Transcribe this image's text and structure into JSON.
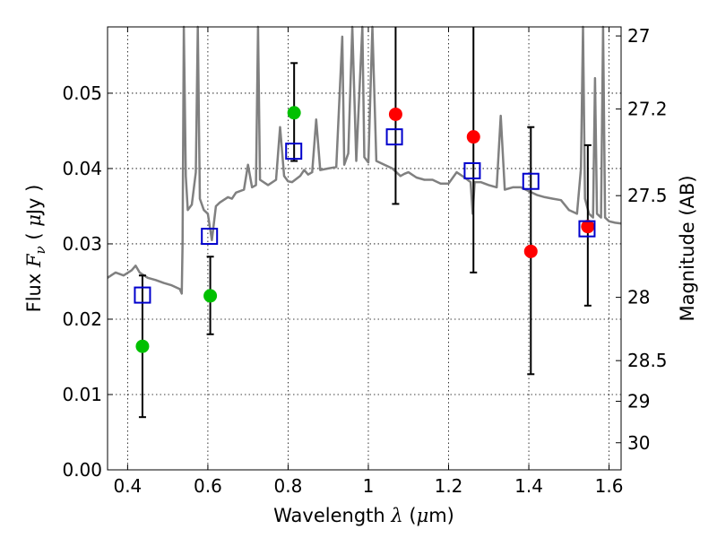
{
  "chart_data": {
    "type": "scatter",
    "xlabel": {
      "prefix": "Wavelength ",
      "symbol": "λ",
      "unit_open": " (",
      "unit_mu": "μ",
      "unit_rest": "m)"
    },
    "ylabel": {
      "prefix": "Flux ",
      "symbol": "F",
      "subscript": "ν",
      "unit_open": " ( ",
      "unit_mu": "μ",
      "unit_rest": "Jy )"
    },
    "y2label": "Magnitude (AB)",
    "xlim": [
      0.35,
      1.63
    ],
    "ylim": [
      0.0,
      0.0588
    ],
    "grid": true,
    "xticks": [
      {
        "value": 0.4,
        "label": "0.4"
      },
      {
        "value": 0.6,
        "label": "0.6"
      },
      {
        "value": 0.8,
        "label": "0.8"
      },
      {
        "value": 1.0,
        "label": "1"
      },
      {
        "value": 1.2,
        "label": "1.2"
      },
      {
        "value": 1.4,
        "label": "1.4"
      },
      {
        "value": 1.6,
        "label": "1.6"
      }
    ],
    "yticks": [
      {
        "value": 0.0,
        "label": "0.00"
      },
      {
        "value": 0.01,
        "label": "0.01"
      },
      {
        "value": 0.02,
        "label": "0.02"
      },
      {
        "value": 0.03,
        "label": "0.03"
      },
      {
        "value": 0.04,
        "label": "0.04"
      },
      {
        "value": 0.05,
        "label": "0.05"
      }
    ],
    "y2ticks": [
      {
        "value": 27,
        "label": "27",
        "flux": 0.0576
      },
      {
        "value": 27.2,
        "label": "27.2",
        "flux": 0.0479
      },
      {
        "value": 27.5,
        "label": "27.5",
        "flux": 0.0364
      },
      {
        "value": 28,
        "label": "28",
        "flux": 0.0229
      },
      {
        "value": 28.5,
        "label": "28.5",
        "flux": 0.0145
      },
      {
        "value": 29,
        "label": "29",
        "flux": 0.0091
      },
      {
        "value": 30,
        "label": "30",
        "flux": 0.0036
      }
    ],
    "series": [
      {
        "name": "model spectrum",
        "style": "line",
        "color": "#808080",
        "points": [
          [
            0.35,
            0.0255
          ],
          [
            0.37,
            0.0262
          ],
          [
            0.39,
            0.0258
          ],
          [
            0.41,
            0.0265
          ],
          [
            0.42,
            0.0271
          ],
          [
            0.43,
            0.0262
          ],
          [
            0.45,
            0.0255
          ],
          [
            0.47,
            0.0252
          ],
          [
            0.49,
            0.0248
          ],
          [
            0.51,
            0.0245
          ],
          [
            0.53,
            0.024
          ],
          [
            0.535,
            0.0234
          ],
          [
            0.537,
            0.03
          ],
          [
            0.54,
            0.0588
          ],
          [
            0.545,
            0.039
          ],
          [
            0.55,
            0.0345
          ],
          [
            0.56,
            0.0352
          ],
          [
            0.57,
            0.0395
          ],
          [
            0.575,
            0.0588
          ],
          [
            0.58,
            0.036
          ],
          [
            0.59,
            0.0345
          ],
          [
            0.6,
            0.034
          ],
          [
            0.61,
            0.0305
          ],
          [
            0.62,
            0.035
          ],
          [
            0.63,
            0.0355
          ],
          [
            0.65,
            0.0362
          ],
          [
            0.66,
            0.036
          ],
          [
            0.67,
            0.0368
          ],
          [
            0.69,
            0.0372
          ],
          [
            0.7,
            0.0405
          ],
          [
            0.71,
            0.0375
          ],
          [
            0.72,
            0.0378
          ],
          [
            0.725,
            0.0588
          ],
          [
            0.73,
            0.0385
          ],
          [
            0.75,
            0.0378
          ],
          [
            0.77,
            0.0385
          ],
          [
            0.78,
            0.0455
          ],
          [
            0.79,
            0.039
          ],
          [
            0.8,
            0.0383
          ],
          [
            0.81,
            0.0382
          ],
          [
            0.83,
            0.039
          ],
          [
            0.84,
            0.0398
          ],
          [
            0.85,
            0.0392
          ],
          [
            0.86,
            0.0395
          ],
          [
            0.87,
            0.0465
          ],
          [
            0.88,
            0.0398
          ],
          [
            0.9,
            0.04
          ],
          [
            0.92,
            0.0402
          ],
          [
            0.935,
            0.0575
          ],
          [
            0.94,
            0.0405
          ],
          [
            0.95,
            0.042
          ],
          [
            0.96,
            0.0588
          ],
          [
            0.97,
            0.041
          ],
          [
            0.985,
            0.0588
          ],
          [
            0.99,
            0.0415
          ],
          [
            1.0,
            0.0408
          ],
          [
            1.01,
            0.0588
          ],
          [
            1.02,
            0.041
          ],
          [
            1.04,
            0.0405
          ],
          [
            1.06,
            0.04
          ],
          [
            1.08,
            0.039
          ],
          [
            1.09,
            0.0393
          ],
          [
            1.1,
            0.0395
          ],
          [
            1.12,
            0.0388
          ],
          [
            1.14,
            0.0385
          ],
          [
            1.16,
            0.0385
          ],
          [
            1.18,
            0.038
          ],
          [
            1.2,
            0.038
          ],
          [
            1.22,
            0.0395
          ],
          [
            1.24,
            0.0388
          ],
          [
            1.255,
            0.0382
          ],
          [
            1.26,
            0.034
          ],
          [
            1.265,
            0.0382
          ],
          [
            1.28,
            0.0382
          ],
          [
            1.3,
            0.0378
          ],
          [
            1.32,
            0.0375
          ],
          [
            1.33,
            0.047
          ],
          [
            1.34,
            0.0372
          ],
          [
            1.36,
            0.0375
          ],
          [
            1.38,
            0.0375
          ],
          [
            1.4,
            0.037
          ],
          [
            1.42,
            0.0365
          ],
          [
            1.44,
            0.0362
          ],
          [
            1.46,
            0.036
          ],
          [
            1.48,
            0.0358
          ],
          [
            1.5,
            0.0345
          ],
          [
            1.52,
            0.034
          ],
          [
            1.53,
            0.04
          ],
          [
            1.535,
            0.0588
          ],
          [
            1.54,
            0.036
          ],
          [
            1.55,
            0.034
          ],
          [
            1.56,
            0.0335
          ],
          [
            1.565,
            0.052
          ],
          [
            1.57,
            0.034
          ],
          [
            1.58,
            0.0335
          ],
          [
            1.585,
            0.0588
          ],
          [
            1.59,
            0.0335
          ],
          [
            1.6,
            0.033
          ],
          [
            1.615,
            0.0328
          ],
          [
            1.63,
            0.0327
          ]
        ]
      },
      {
        "name": "green points",
        "style": "circle",
        "color": "#00c000",
        "points": [
          {
            "x": 0.437,
            "y": 0.0164,
            "ylo": 0.007,
            "yhi": 0.0258
          },
          {
            "x": 0.606,
            "y": 0.0231,
            "ylo": 0.018,
            "yhi": 0.0283
          },
          {
            "x": 0.815,
            "y": 0.0474,
            "ylo": 0.041,
            "yhi": 0.054
          }
        ]
      },
      {
        "name": "red points",
        "style": "circle",
        "color": "#ff0000",
        "points": [
          {
            "x": 1.068,
            "y": 0.0472,
            "ylo": 0.0353,
            "yhi": 0.0588
          },
          {
            "x": 1.262,
            "y": 0.0442,
            "ylo": 0.0262,
            "yhi": 0.0588
          },
          {
            "x": 1.405,
            "y": 0.029,
            "ylo": 0.0127,
            "yhi": 0.0455
          },
          {
            "x": 1.547,
            "y": 0.0323,
            "ylo": 0.0218,
            "yhi": 0.0431
          }
        ]
      },
      {
        "name": "model photometry",
        "style": "square",
        "color": "#0000cc",
        "points": [
          {
            "x": 0.437,
            "y": 0.0232
          },
          {
            "x": 0.604,
            "y": 0.031
          },
          {
            "x": 0.814,
            "y": 0.0423
          },
          {
            "x": 1.065,
            "y": 0.0442
          },
          {
            "x": 1.259,
            "y": 0.0397
          },
          {
            "x": 1.405,
            "y": 0.0383
          },
          {
            "x": 1.545,
            "y": 0.032
          }
        ]
      }
    ]
  }
}
